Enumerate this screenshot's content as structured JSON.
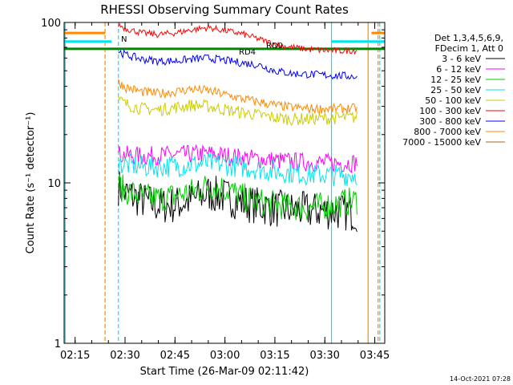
{
  "chart_data": {
    "type": "line",
    "title": "RHESSI Observing Summary Count Rates",
    "xlabel": "Start Time (26-Mar-09 02:11:42)",
    "ylabel": "Count Rate (s⁻¹ detector⁻¹)",
    "y_scale": "log",
    "ylim": [
      1,
      100
    ],
    "xlim": [
      "02:11:42",
      "03:48:00"
    ],
    "x_ticks": [
      "02:15",
      "02:30",
      "02:45",
      "03:00",
      "03:15",
      "03:30",
      "03:45"
    ],
    "y_ticks": [
      "1",
      "10",
      "100"
    ],
    "legend_header": [
      "Det 1,3,4,5,6,9,",
      "FDecim 1, Att 0"
    ],
    "legend_position": "right",
    "footer": "14-Oct-2021 07:28",
    "annotations": [
      "RD4",
      "RD0",
      "N"
    ],
    "series": [
      {
        "name": "3 - 6 keV",
        "color": "#000000",
        "points": [
          [
            "02:28",
            9.5
          ],
          [
            "02:30",
            8.6
          ],
          [
            "02:35",
            7.8
          ],
          [
            "02:40",
            7.2
          ],
          [
            "02:45",
            7.3
          ],
          [
            "02:50",
            7.8
          ],
          [
            "02:55",
            8.6
          ],
          [
            "03:00",
            8.2
          ],
          [
            "03:05",
            7.6
          ],
          [
            "03:10",
            7.2
          ],
          [
            "03:15",
            6.9
          ],
          [
            "03:20",
            6.8
          ],
          [
            "03:25",
            6.7
          ],
          [
            "03:30",
            6.7
          ],
          [
            "03:35",
            6.6
          ],
          [
            "03:40",
            6.5
          ]
        ]
      },
      {
        "name": "6 - 12 keV",
        "color": "#ff00ff",
        "points": [
          [
            "02:28",
            15.0
          ],
          [
            "02:35",
            14.7
          ],
          [
            "02:45",
            14.9
          ],
          [
            "02:55",
            15.2
          ],
          [
            "03:05",
            14.4
          ],
          [
            "03:15",
            13.8
          ],
          [
            "03:25",
            13.4
          ],
          [
            "03:35",
            13.3
          ],
          [
            "03:40",
            13.4
          ]
        ]
      },
      {
        "name": "12 - 25 keV",
        "color": "#00cc00",
        "points": [
          [
            "02:28",
            9.6
          ],
          [
            "02:30",
            9.0
          ],
          [
            "02:35",
            8.2
          ],
          [
            "02:40",
            8.0
          ],
          [
            "02:45",
            8.3
          ],
          [
            "02:50",
            8.8
          ],
          [
            "02:55",
            9.6
          ],
          [
            "03:00",
            9.2
          ],
          [
            "03:05",
            8.2
          ],
          [
            "03:10",
            7.6
          ],
          [
            "03:15",
            7.3
          ],
          [
            "03:20",
            7.1
          ],
          [
            "03:25",
            7.0
          ],
          [
            "03:30",
            7.2
          ],
          [
            "03:35",
            7.5
          ],
          [
            "03:40",
            7.8
          ]
        ]
      },
      {
        "name": "25 - 50 keV",
        "color": "#00e5ee",
        "points": [
          [
            "02:28",
            13.2
          ],
          [
            "02:35",
            12.6
          ],
          [
            "02:45",
            12.7
          ],
          [
            "02:55",
            13.3
          ],
          [
            "03:05",
            12.6
          ],
          [
            "03:15",
            11.8
          ],
          [
            "03:25",
            11.3
          ],
          [
            "03:35",
            11.2
          ],
          [
            "03:40",
            11.3
          ]
        ]
      },
      {
        "name": "50 - 100 keV",
        "color": "#cccc00",
        "points": [
          [
            "02:28",
            33.0
          ],
          [
            "02:30",
            31.0
          ],
          [
            "02:35",
            29.0
          ],
          [
            "02:40",
            28.5
          ],
          [
            "02:45",
            29.5
          ],
          [
            "02:50",
            30.5
          ],
          [
            "02:55",
            30.0
          ],
          [
            "03:00",
            28.5
          ],
          [
            "03:05",
            27.5
          ],
          [
            "03:10",
            26.5
          ],
          [
            "03:15",
            25.5
          ],
          [
            "03:20",
            25.0
          ],
          [
            "03:25",
            25.0
          ],
          [
            "03:30",
            25.2
          ],
          [
            "03:35",
            25.5
          ],
          [
            "03:40",
            25.6
          ]
        ]
      },
      {
        "name": "100 - 300 keV",
        "color": "#ff0000",
        "points": [
          [
            "02:28",
            97.0
          ],
          [
            "02:30",
            92.0
          ],
          [
            "02:35",
            86.0
          ],
          [
            "02:40",
            84.0
          ],
          [
            "02:45",
            86.0
          ],
          [
            "02:50",
            90.0
          ],
          [
            "02:55",
            93.0
          ],
          [
            "03:00",
            89.0
          ],
          [
            "03:05",
            85.0
          ],
          [
            "03:10",
            79.0
          ],
          [
            "03:15",
            73.0
          ],
          [
            "03:20",
            70.0
          ],
          [
            "03:25",
            68.0
          ],
          [
            "03:30",
            67.0
          ],
          [
            "03:35",
            66.5
          ],
          [
            "03:40",
            67.0
          ]
        ]
      },
      {
        "name": "300 - 800 keV",
        "color": "#0000ff",
        "points": [
          [
            "02:28",
            66.0
          ],
          [
            "02:30",
            63.0
          ],
          [
            "02:35",
            59.0
          ],
          [
            "02:40",
            57.5
          ],
          [
            "02:45",
            57.5
          ],
          [
            "02:50",
            59.0
          ],
          [
            "02:55",
            60.0
          ],
          [
            "03:00",
            58.0
          ],
          [
            "03:05",
            56.0
          ],
          [
            "03:10",
            54.5
          ],
          [
            "03:15",
            50.0
          ],
          [
            "03:20",
            48.0
          ],
          [
            "03:25",
            47.5
          ],
          [
            "03:30",
            47.0
          ],
          [
            "03:35",
            46.5
          ],
          [
            "03:40",
            46.0
          ]
        ]
      },
      {
        "name": "800 - 7000 keV",
        "color": "#ff8800",
        "points": [
          [
            "02:28",
            42.5
          ],
          [
            "02:30",
            39.5
          ],
          [
            "02:35",
            37.0
          ],
          [
            "02:40",
            36.0
          ],
          [
            "02:45",
            37.0
          ],
          [
            "02:50",
            38.5
          ],
          [
            "02:55",
            37.5
          ],
          [
            "03:00",
            35.5
          ],
          [
            "03:05",
            33.5
          ],
          [
            "03:10",
            32.0
          ],
          [
            "03:15",
            30.5
          ],
          [
            "03:20",
            29.5
          ],
          [
            "03:25",
            29.0
          ],
          [
            "03:30",
            29.0
          ],
          [
            "03:35",
            29.0
          ],
          [
            "03:40",
            29.2
          ]
        ]
      },
      {
        "name": "7000 - 15000 keV",
        "color": "#aa6622",
        "points": []
      }
    ],
    "overlays": [
      {
        "name": "RD0",
        "color": "#008800",
        "points": [
          [
            "02:11:42",
            68.5
          ],
          [
            "03:48",
            68.5
          ]
        ]
      },
      {
        "name": "orange-left-segment",
        "color": "#ff8800",
        "points": [
          [
            "02:11:42",
            86
          ],
          [
            "02:24",
            86
          ]
        ]
      },
      {
        "name": "cyan-left-segment",
        "color": "#00e5ee",
        "points": [
          [
            "02:11:42",
            76
          ],
          [
            "02:26",
            76
          ]
        ]
      },
      {
        "name": "cyan-right-segment",
        "color": "#00e5ee",
        "points": [
          [
            "03:32",
            76
          ],
          [
            "03:48",
            76
          ]
        ]
      },
      {
        "name": "orange-right-segment",
        "color": "#ff8800",
        "points": [
          [
            "03:44",
            86
          ],
          [
            "03:48",
            86
          ]
        ]
      }
    ],
    "event_lines": [
      {
        "time": "02:12",
        "color": "#00e5ee",
        "style": "solid"
      },
      {
        "time": "02:24",
        "color": "#ff8800",
        "style": "dashed"
      },
      {
        "time": "02:28",
        "color": "#00e5ee",
        "style": "dashed"
      },
      {
        "time": "03:32",
        "color": "#00e5ee",
        "style": "solid"
      },
      {
        "time": "03:43",
        "color": "#ff8800",
        "style": "solid"
      },
      {
        "time": "03:46",
        "color": "#ff8800",
        "style": "dashed"
      },
      {
        "time": "03:46:30",
        "color": "#00e5ee",
        "style": "dashed"
      }
    ]
  }
}
